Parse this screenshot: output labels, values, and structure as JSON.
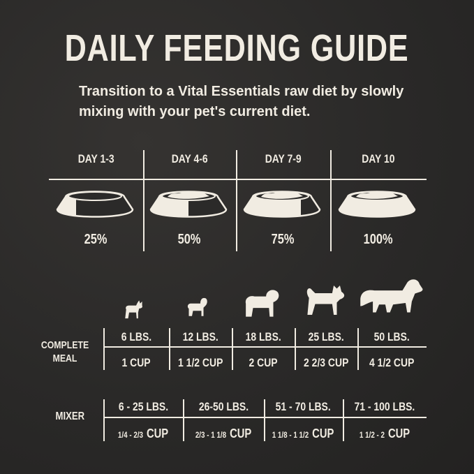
{
  "title": "DAILY FEEDING GUIDE",
  "subtitle": "Transition to a Vital Essentials raw diet by slowly mixing with your pet's current diet.",
  "colors": {
    "background": "#2b2a29",
    "text": "#f1ece2"
  },
  "transition": [
    {
      "day": "DAY 1-3",
      "percent": "25%",
      "fraction": 0.25
    },
    {
      "day": "DAY 4-6",
      "percent": "50%",
      "fraction": 0.5
    },
    {
      "day": "DAY 7-9",
      "percent": "75%",
      "fraction": 0.75
    },
    {
      "day": "DAY 10",
      "percent": "100%",
      "fraction": 1.0
    }
  ],
  "complete_meal": {
    "label": "COMPLETE MEAL",
    "rows": [
      {
        "weight": "6 LBS.",
        "amount": "1 CUP",
        "icon": "chihuahua-icon"
      },
      {
        "weight": "12 LBS.",
        "amount": "1 1/2 CUP",
        "icon": "poodle-icon"
      },
      {
        "weight": "18 LBS.",
        "amount": "2 CUP",
        "icon": "pug-icon"
      },
      {
        "weight": "25 LBS.",
        "amount": "2 2/3 CUP",
        "icon": "shiba-icon"
      },
      {
        "weight": "50 LBS.",
        "amount": "4 1/2 CUP",
        "icon": "retriever-icon"
      }
    ]
  },
  "mixer": {
    "label": "MIXER",
    "rows": [
      {
        "weight": "6 - 25 LBS.",
        "range": "1/4 - 2/3",
        "unit": "CUP"
      },
      {
        "weight": "26-50 LBS.",
        "range": "2/3 - 1 1/8",
        "unit": "CUP"
      },
      {
        "weight": "51 - 70 LBS.",
        "range": "1 1/8 - 1 1/2",
        "unit": "CUP"
      },
      {
        "weight": "71 - 100 LBS.",
        "range": "1 1/2 - 2",
        "unit": "CUP"
      }
    ]
  }
}
